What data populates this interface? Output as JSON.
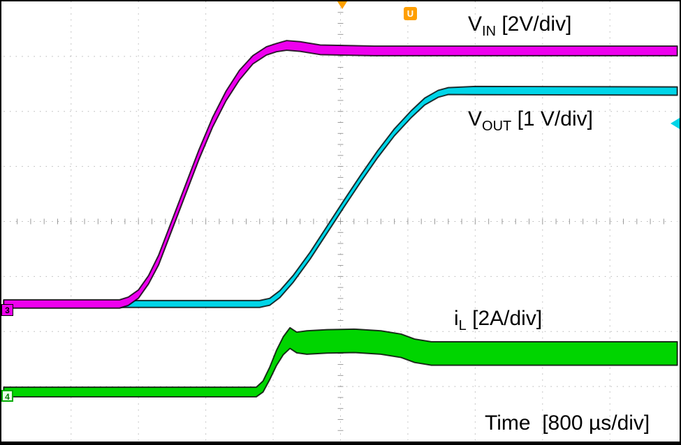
{
  "title": "Oscilloscope start-up waveform capture",
  "labels": {
    "vin": {
      "base": "V",
      "sub": "IN",
      "rest": " [2V/div]"
    },
    "vout": {
      "base": "V",
      "sub": "OUT",
      "rest": " [1 V/div]"
    },
    "il": {
      "base": "i",
      "sub": "L",
      "rest": " [2A/div]"
    },
    "time": "Time  [800 µs/div]"
  },
  "markers": {
    "ch3": "3",
    "ch4": "4",
    "trigger_symbol": "U"
  },
  "colors": {
    "vin": "#ee00ee",
    "vout": "#00d5e8",
    "il": "#00d500",
    "trigger": "#ff9f00",
    "grid": "#b3b3b3",
    "tick": "#999999",
    "text": "#000000",
    "background": "#ffffff"
  },
  "chart_data": {
    "type": "line",
    "instrument": "oscilloscope",
    "title": "Soft-start: input voltage, output voltage and inductor current",
    "x_axis": {
      "label": "Time",
      "per_div": "800 µs",
      "divisions": 10,
      "total_time_ms": 8,
      "grid": "dotted"
    },
    "y_axis": {
      "divisions": 8,
      "grid": "dotted"
    },
    "trigger_position_div": 5,
    "text_annotations": [
      "V_IN [2V/div]",
      "V_OUT [1 V/div]",
      "i_L [2A/div]",
      "Time  [800 µs/div]"
    ],
    "channel_markers": [
      {
        "channel": "3",
        "color": "#ee00ee",
        "y_div": 5.5
      },
      {
        "channel": "4",
        "color": "#00d500",
        "y_div": 7.1
      }
    ],
    "series": [
      {
        "id": "il",
        "name": "i_L",
        "per_div": "2 A",
        "color": "#00d500",
        "approx_final_value": "≈1.4 A avg with ≈±0.45 A switching ripple, step begins ≈3.0 ms",
        "points_div": [
          [
            0,
            7.1,
            7
          ],
          [
            3.75,
            7.1,
            7
          ],
          [
            3.85,
            7.0,
            8
          ],
          [
            3.95,
            6.76,
            9
          ],
          [
            4.05,
            6.48,
            11
          ],
          [
            4.15,
            6.26,
            13
          ],
          [
            4.25,
            6.12,
            15
          ],
          [
            4.35,
            6.2,
            15
          ],
          [
            4.5,
            6.2,
            17
          ],
          [
            4.8,
            6.18,
            17
          ],
          [
            5.2,
            6.17,
            17
          ],
          [
            5.6,
            6.2,
            17
          ],
          [
            5.9,
            6.26,
            17
          ],
          [
            6.1,
            6.35,
            17
          ],
          [
            6.35,
            6.4,
            17
          ],
          [
            7.0,
            6.4,
            17
          ],
          [
            10,
            6.4,
            17
          ]
        ]
      },
      {
        "id": "vout",
        "name": "V_OUT",
        "per_div": "1 V",
        "color": "#00d5e8",
        "approx_final_value": "≈3.9 V, ramps from ≈3.05 ms to ≈5.3 ms",
        "points_div": [
          [
            0,
            5.5,
            5
          ],
          [
            3.8,
            5.5,
            5
          ],
          [
            3.95,
            5.46,
            5
          ],
          [
            4.1,
            5.32,
            5
          ],
          [
            4.3,
            5.04,
            5
          ],
          [
            4.55,
            4.62,
            5
          ],
          [
            4.8,
            4.15,
            5
          ],
          [
            5.05,
            3.68,
            5
          ],
          [
            5.3,
            3.22,
            5
          ],
          [
            5.55,
            2.78,
            5
          ],
          [
            5.8,
            2.38,
            5
          ],
          [
            6.05,
            2.05,
            5
          ],
          [
            6.25,
            1.82,
            5
          ],
          [
            6.45,
            1.68,
            5
          ],
          [
            6.6,
            1.63,
            5
          ],
          [
            7.0,
            1.62,
            6
          ],
          [
            10,
            1.63,
            6
          ]
        ]
      },
      {
        "id": "vin",
        "name": "V_IN",
        "per_div": "2 V",
        "color": "#ee00ee",
        "approx_final_value": "≈9.2 V, ramps from ≈1.4 ms to ≈3.3 ms",
        "points_div": [
          [
            0,
            5.5,
            6
          ],
          [
            1.72,
            5.5,
            6
          ],
          [
            1.85,
            5.45,
            6
          ],
          [
            2.0,
            5.32,
            6
          ],
          [
            2.15,
            5.06,
            6
          ],
          [
            2.3,
            4.7,
            7
          ],
          [
            2.5,
            4.06,
            7
          ],
          [
            2.7,
            3.42,
            7
          ],
          [
            2.9,
            2.78,
            7
          ],
          [
            3.1,
            2.2,
            7
          ],
          [
            3.3,
            1.72,
            7
          ],
          [
            3.5,
            1.34,
            7
          ],
          [
            3.7,
            1.06,
            6
          ],
          [
            3.9,
            0.9,
            6
          ],
          [
            4.05,
            0.84,
            6
          ],
          [
            4.2,
            0.8,
            7
          ],
          [
            4.4,
            0.82,
            7
          ],
          [
            4.7,
            0.88,
            7
          ],
          [
            5.5,
            0.9,
            7
          ],
          [
            10,
            0.9,
            7
          ]
        ]
      }
    ]
  }
}
